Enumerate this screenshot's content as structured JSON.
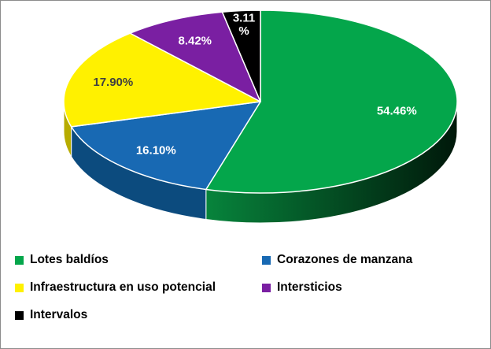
{
  "chart_data": {
    "type": "pie",
    "three_d": true,
    "title": "",
    "legend_position": "bottom",
    "background_color": "#FFFFFF",
    "slices": [
      {
        "id": "lotes-baldios",
        "name": "Lotes baldíos",
        "value": 54.46,
        "label_lines": [
          "54.46%"
        ],
        "color": "#04A64B",
        "side_color": "#055C2B",
        "side_gradient": true,
        "label_color": "#FFFFFF",
        "label_r": 0.7
      },
      {
        "id": "corazones-de-manzana",
        "name": "Corazones de manzana",
        "value": 16.1,
        "label_lines": [
          "16.10%"
        ],
        "color": "#1869B3",
        "side_color": "#0C4B7E",
        "label_color": "#FFFFFF",
        "label_r": 0.75
      },
      {
        "id": "infraestructura-en-uso-potencial",
        "name": "Infraestructura en uso potencial",
        "value": 17.9,
        "label_lines": [
          "17.90%"
        ],
        "color": "#FFF100",
        "side_color": "#B7AC00",
        "label_color": "#404040",
        "label_r": 0.78
      },
      {
        "id": "intersticios",
        "name": "Intersticios",
        "value": 8.42,
        "label_lines": [
          "8.42%"
        ],
        "color": "#7A1FA2",
        "side_color": "#4E1168",
        "label_color": "#FFFFFF",
        "label_r": 0.75
      },
      {
        "id": "intervalos",
        "name": "Intervalos",
        "value": 3.11,
        "label_lines": [
          "3.11",
          "%"
        ],
        "color": "#000000",
        "side_color": "#1A1A1A",
        "label_color": "#FFFFFF",
        "label_r": 0.86
      }
    ]
  }
}
